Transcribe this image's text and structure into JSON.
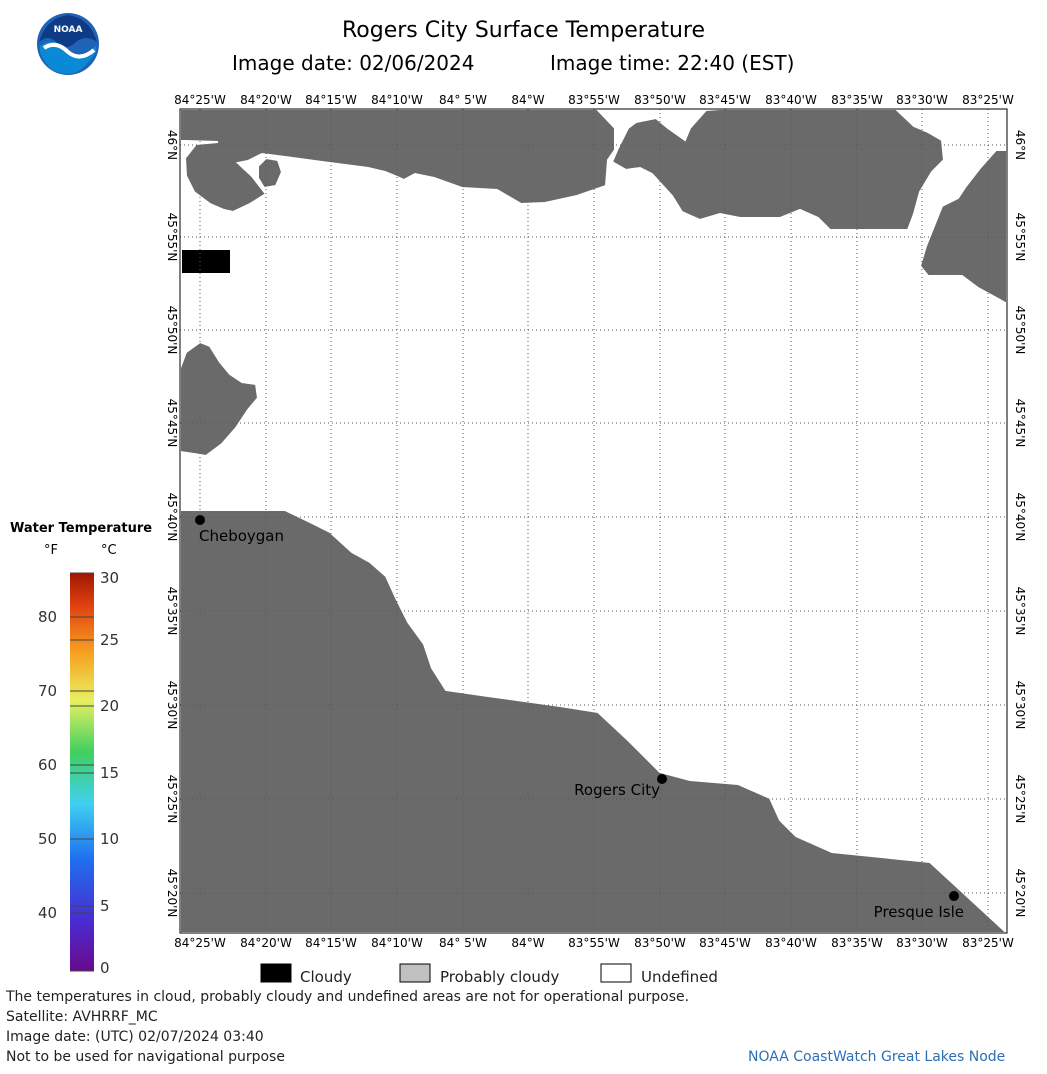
{
  "header": {
    "title": "Rogers City Surface Temperature",
    "image_date": "Image date: 02/06/2024",
    "image_time": "Image time: 22:40 (EST)"
  },
  "logo": {
    "text": "NOAA",
    "icon": "noaa-logo-icon"
  },
  "map": {
    "lon_labels": [
      "84°25'W",
      "84°20'W",
      "84°15'W",
      "84°10'W",
      "84° 5'W",
      "84°W",
      "83°55'W",
      "83°50'W",
      "83°45'W",
      "83°40'W",
      "83°35'W",
      "83°30'W",
      "83°25'W"
    ],
    "lat_labels": [
      "46°N",
      "45°55'N",
      "45°50'N",
      "45°45'N",
      "45°40'N",
      "45°35'N",
      "45°30'N",
      "45°25'N",
      "45°20'N"
    ],
    "cities": [
      {
        "name": "Cheboygan"
      },
      {
        "name": "Rogers City"
      },
      {
        "name": "Presque Isle"
      }
    ],
    "colors": {
      "land": "#6a6a6a",
      "water": "#ffffff",
      "cloud": "#000000",
      "grid": "#555555"
    }
  },
  "color_scale": {
    "title": "Water Temperature",
    "unit_f": "°F",
    "unit_c": "°C",
    "f_ticks": [
      "80",
      "70",
      "60",
      "50",
      "40"
    ],
    "c_ticks": [
      "30",
      "25",
      "20",
      "15",
      "10",
      "5",
      "0"
    ]
  },
  "legend": {
    "cloudy": "Cloudy",
    "probably_cloudy": "Probably cloudy",
    "undefined": "Undefined",
    "colors": {
      "cloudy": "#000000",
      "probably_cloudy": "#c0c0c0",
      "undefined": "#ffffff"
    }
  },
  "footer": {
    "disclaimer": "The temperatures in cloud, probably cloudy and undefined areas are not for operational purpose.",
    "satellite": "Satellite: AVHRRF_MC",
    "utc_date": "Image date: (UTC) 02/07/2024  03:40",
    "nav_warning": "Not to be used for navigational purpose",
    "credit": "NOAA CoastWatch Great Lakes Node"
  }
}
